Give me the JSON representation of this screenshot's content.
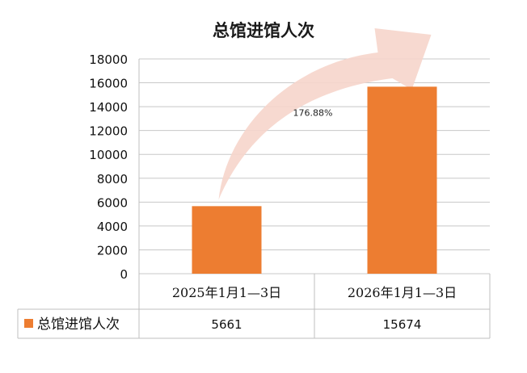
{
  "chart_data": {
    "type": "bar",
    "title": "总馆进馆人次",
    "categories": [
      "2025年1月1—3日",
      "2026年1月1—3日"
    ],
    "series": [
      {
        "name": "总馆进馆人次",
        "values": [
          5661,
          15674
        ]
      }
    ],
    "ylim": [
      0,
      18000
    ],
    "yticks": [
      0,
      2000,
      4000,
      6000,
      8000,
      10000,
      12000,
      14000,
      16000,
      18000
    ],
    "grid": true,
    "legend": "data-table",
    "data_table": true,
    "annotation": "176.88%",
    "bar_color": "#ED7D31",
    "arrow_color": "#F6D5CB"
  }
}
